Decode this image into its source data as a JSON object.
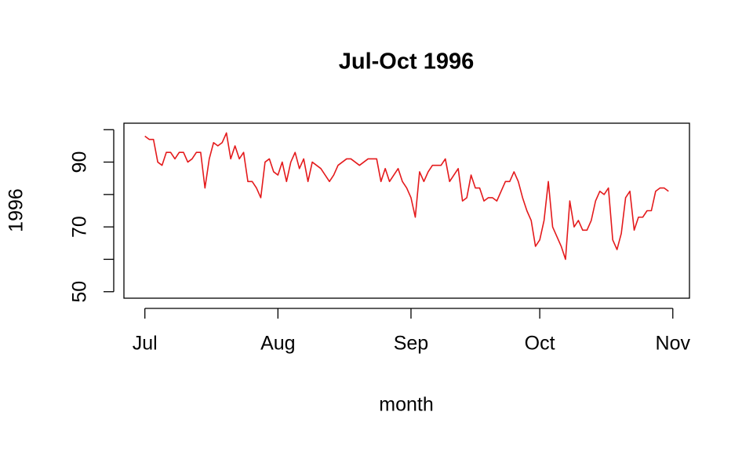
{
  "chart_data": {
    "type": "line",
    "title": "Jul-Oct 1996",
    "xlabel": "month",
    "ylabel": "1996",
    "color": "#e41a1c",
    "x": [
      0,
      1,
      2,
      3,
      4,
      5,
      6,
      7,
      8,
      9,
      10,
      11,
      12,
      13,
      14,
      15,
      16,
      17,
      18,
      19,
      20,
      21,
      22,
      23,
      24,
      25,
      26,
      27,
      28,
      29,
      30,
      31,
      32,
      33,
      34,
      35,
      36,
      37,
      38,
      39,
      40,
      41,
      42,
      43,
      44,
      45,
      46,
      47,
      48,
      49,
      50,
      51,
      52,
      53,
      54,
      55,
      56,
      57,
      58,
      59,
      60,
      61,
      62,
      63,
      64,
      65,
      66,
      67,
      68,
      69,
      70,
      71,
      72,
      73,
      74,
      75,
      76,
      77,
      78,
      79,
      80,
      81,
      82,
      83,
      84,
      85,
      86,
      87,
      88,
      89,
      90,
      91,
      92,
      93,
      94,
      95,
      96,
      97,
      98,
      99,
      100,
      101,
      102,
      103,
      104,
      105,
      106,
      107,
      108,
      109,
      110,
      111,
      112,
      113,
      114,
      115,
      116,
      117,
      118,
      119,
      120,
      121,
      122
    ],
    "values": [
      98,
      97,
      97,
      90,
      89,
      93,
      93,
      91,
      93,
      93,
      90,
      91,
      93,
      93,
      82,
      91,
      96,
      95,
      96,
      99,
      91,
      95,
      91,
      93,
      84,
      84,
      82,
      79,
      90,
      91,
      87,
      86,
      90,
      84,
      90,
      93,
      88,
      91,
      84,
      90,
      89,
      88,
      86,
      84,
      86,
      89,
      90,
      91,
      91,
      90,
      89,
      90,
      91,
      91,
      91,
      84,
      88,
      84,
      86,
      88,
      84,
      82,
      79,
      73,
      87,
      84,
      87,
      89,
      89,
      89,
      91,
      84,
      86,
      88,
      78,
      79,
      86,
      82,
      82,
      78,
      79,
      79,
      78,
      81,
      84,
      84,
      87,
      84,
      79,
      75,
      72,
      64,
      66,
      72,
      84,
      70,
      67,
      64,
      60,
      78,
      70,
      72,
      69,
      69,
      72,
      78,
      81,
      80,
      82,
      66,
      63,
      68,
      79,
      81,
      69,
      73,
      73,
      75,
      75,
      81,
      82,
      82,
      81
    ],
    "xlim": [
      -4.88,
      126.88
    ],
    "xticks": [
      {
        "value": 0,
        "label": "Jul"
      },
      {
        "value": 31,
        "label": "Aug"
      },
      {
        "value": 62,
        "label": "Sep"
      },
      {
        "value": 92,
        "label": "Oct"
      },
      {
        "value": 123,
        "label": "Nov"
      }
    ],
    "ylim": [
      48,
      102
    ],
    "yticks": [
      50,
      70,
      90
    ],
    "yminor_ticks": [
      60,
      80,
      100
    ]
  }
}
